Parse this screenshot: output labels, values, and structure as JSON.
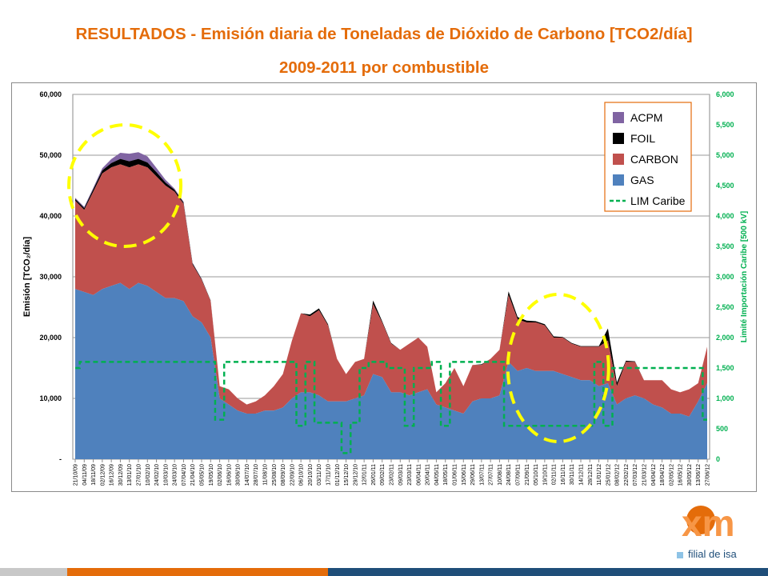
{
  "slide": {
    "title_line1": "RESULTADOS - Emisión diaria de Toneladas de Dióxido de Carbono [TCO2/día]",
    "title_line2": "2009-2011 por combustible",
    "logo_text": "xm",
    "logo_tagline": "filial de isa",
    "colors": {
      "title": "#e46c0a",
      "footer_gray": "#c8c8c8",
      "footer_orange": "#e46c0a",
      "footer_blue": "#1f4e79"
    }
  },
  "chart_data": {
    "type": "area",
    "stacked": true,
    "ylabel": "Emisión [TCO₂/día]",
    "y2label": "Limité Importación Caribe [500 kV]",
    "ylim": [
      0,
      60000
    ],
    "y2lim": [
      0,
      6000
    ],
    "yticks": [
      0,
      10000,
      20000,
      30000,
      40000,
      50000,
      60000
    ],
    "ytick_labels": [
      "-",
      "10,000",
      "20,000",
      "30,000",
      "40,000",
      "50,000",
      "60,000"
    ],
    "y2ticks": [
      0,
      500,
      1000,
      1500,
      2000,
      2500,
      3000,
      3500,
      4000,
      4500,
      5000,
      5500,
      6000
    ],
    "y2tick_labels": [
      "0",
      "500",
      "1,000",
      "1,500",
      "2,000",
      "2,500",
      "3,000",
      "3,500",
      "4,000",
      "4,500",
      "5,000",
      "5,500",
      "6,000"
    ],
    "grid": true,
    "legend_position": "top-right",
    "xtick_labels": [
      "21/10/09",
      "04/11/09",
      "18/11/09",
      "02/12/09",
      "16/12/09",
      "30/12/09",
      "13/01/10",
      "27/01/10",
      "10/02/10",
      "24/02/10",
      "10/03/10",
      "24/03/10",
      "07/04/10",
      "21/04/10",
      "05/05/10",
      "19/05/10",
      "02/06/10",
      "16/06/10",
      "30/06/10",
      "14/07/10",
      "28/07/10",
      "11/08/10",
      "25/08/10",
      "08/09/10",
      "22/09/10",
      "06/10/10",
      "20/10/10",
      "03/11/10",
      "17/11/10",
      "01/12/10",
      "15/12/10",
      "29/12/10",
      "12/01/11",
      "26/01/11",
      "09/02/11",
      "23/02/11",
      "09/03/11",
      "23/03/11",
      "06/04/11",
      "20/04/11",
      "04/05/11",
      "18/05/11",
      "01/06/11",
      "15/06/11",
      "29/06/11",
      "13/07/11",
      "27/07/11",
      "10/08/11",
      "24/08/11",
      "07/09/11",
      "21/09/11",
      "05/10/11",
      "19/10/11",
      "02/11/11",
      "16/11/11",
      "30/11/11",
      "14/12/11",
      "28/12/11",
      "11/01/12",
      "25/01/12",
      "08/02/12",
      "22/02/12",
      "07/03/12",
      "21/03/12",
      "04/04/12",
      "18/04/12",
      "02/05/12",
      "16/05/12",
      "30/05/12",
      "13/06/12",
      "27/06/12"
    ],
    "series": [
      {
        "name": "ACPM",
        "color": "#8064a2",
        "values": [
          200,
          200,
          250,
          350,
          650,
          1000,
          1250,
          1100,
          1000,
          700,
          450,
          200,
          150,
          100,
          50,
          0,
          0,
          0,
          0,
          0,
          0,
          0,
          0,
          0,
          0,
          0,
          0,
          0,
          0,
          0,
          0,
          0,
          0,
          0,
          0,
          0,
          0,
          0,
          0,
          0,
          0,
          0,
          0,
          0,
          0,
          0,
          0,
          0,
          0,
          0,
          0,
          0,
          0,
          0,
          0,
          0,
          0,
          0,
          0,
          0,
          0,
          0,
          0,
          0,
          0,
          0,
          0,
          0,
          0,
          0,
          0
        ]
      },
      {
        "name": "FOIL",
        "color": "#000000",
        "values": [
          300,
          300,
          400,
          500,
          700,
          900,
          1000,
          900,
          800,
          700,
          500,
          300,
          200,
          200,
          150,
          100,
          0,
          0,
          0,
          0,
          0,
          0,
          0,
          0,
          0,
          0,
          300,
          300,
          200,
          0,
          0,
          0,
          0,
          600,
          200,
          100,
          0,
          0,
          0,
          0,
          0,
          0,
          0,
          0,
          0,
          100,
          0,
          0,
          600,
          400,
          300,
          200,
          200,
          200,
          100,
          100,
          100,
          100,
          100,
          2000,
          600,
          200,
          100,
          0,
          0,
          0,
          0,
          0,
          0,
          0,
          0
        ]
      },
      {
        "name": "CARBON",
        "color": "#c0504d",
        "values": [
          14500,
          13500,
          17000,
          19000,
          19500,
          19500,
          20000,
          19500,
          19500,
          19000,
          18500,
          17500,
          16000,
          8500,
          7000,
          6000,
          2000,
          2500,
          2000,
          1500,
          2000,
          2500,
          4000,
          5500,
          9500,
          13000,
          12500,
          14000,
          12500,
          7000,
          4500,
          6000,
          6000,
          11500,
          9000,
          8000,
          7000,
          8500,
          9000,
          7000,
          2000,
          4000,
          7000,
          4500,
          6000,
          5500,
          6500,
          7500,
          11000,
          8500,
          7500,
          8000,
          7500,
          5500,
          6000,
          5500,
          5500,
          5500,
          6500,
          7000,
          3000,
          6000,
          5500,
          3000,
          4000,
          4500,
          4000,
          3500,
          4500,
          3000,
          6000
        ]
      },
      {
        "name": "GAS",
        "color": "#4f81bd",
        "values": [
          28000,
          27500,
          27000,
          28000,
          28500,
          29000,
          28000,
          29000,
          28500,
          27500,
          26500,
          26500,
          26000,
          23500,
          22500,
          20000,
          10000,
          9000,
          8000,
          7500,
          7500,
          8000,
          8000,
          8500,
          10000,
          11000,
          11000,
          10500,
          9500,
          9500,
          9500,
          10000,
          10500,
          14000,
          13500,
          11000,
          11000,
          10500,
          11000,
          11500,
          9000,
          8500,
          8000,
          7500,
          9500,
          10000,
          10000,
          10500,
          16000,
          14500,
          15000,
          14500,
          14500,
          14500,
          14000,
          13500,
          13000,
          13000,
          12000,
          12500,
          9000,
          10000,
          10500,
          10000,
          9000,
          8500,
          7500,
          7500,
          7000,
          9500,
          12500
        ]
      },
      {
        "name": "LIM Caribe",
        "color": "#00b050",
        "style": "dashed",
        "axis": "right",
        "values": [
          1500,
          1600,
          1600,
          1600,
          1600,
          1600,
          1600,
          1600,
          1600,
          1600,
          1600,
          1600,
          1600,
          1600,
          1600,
          1600,
          650,
          1600,
          1600,
          1600,
          1600,
          1600,
          1600,
          1600,
          1600,
          550,
          1600,
          600,
          600,
          600,
          100,
          600,
          1500,
          1600,
          1600,
          1500,
          1500,
          550,
          1500,
          1500,
          1600,
          550,
          1600,
          1600,
          1600,
          1600,
          1600,
          1600,
          550,
          550,
          550,
          550,
          550,
          550,
          550,
          550,
          550,
          550,
          1600,
          550,
          1500,
          1500,
          1500,
          1500,
          1500,
          1500,
          1500,
          1500,
          1500,
          1500,
          650
        ]
      }
    ],
    "annotations": [
      {
        "shape": "dashed-ellipse",
        "color": "#ffff00",
        "center_x": "06/01/10",
        "center_y": 45000
      },
      {
        "shape": "dashed-ellipse",
        "color": "#ffff00",
        "center_x": "09/11/11",
        "center_y": 15000
      }
    ]
  }
}
